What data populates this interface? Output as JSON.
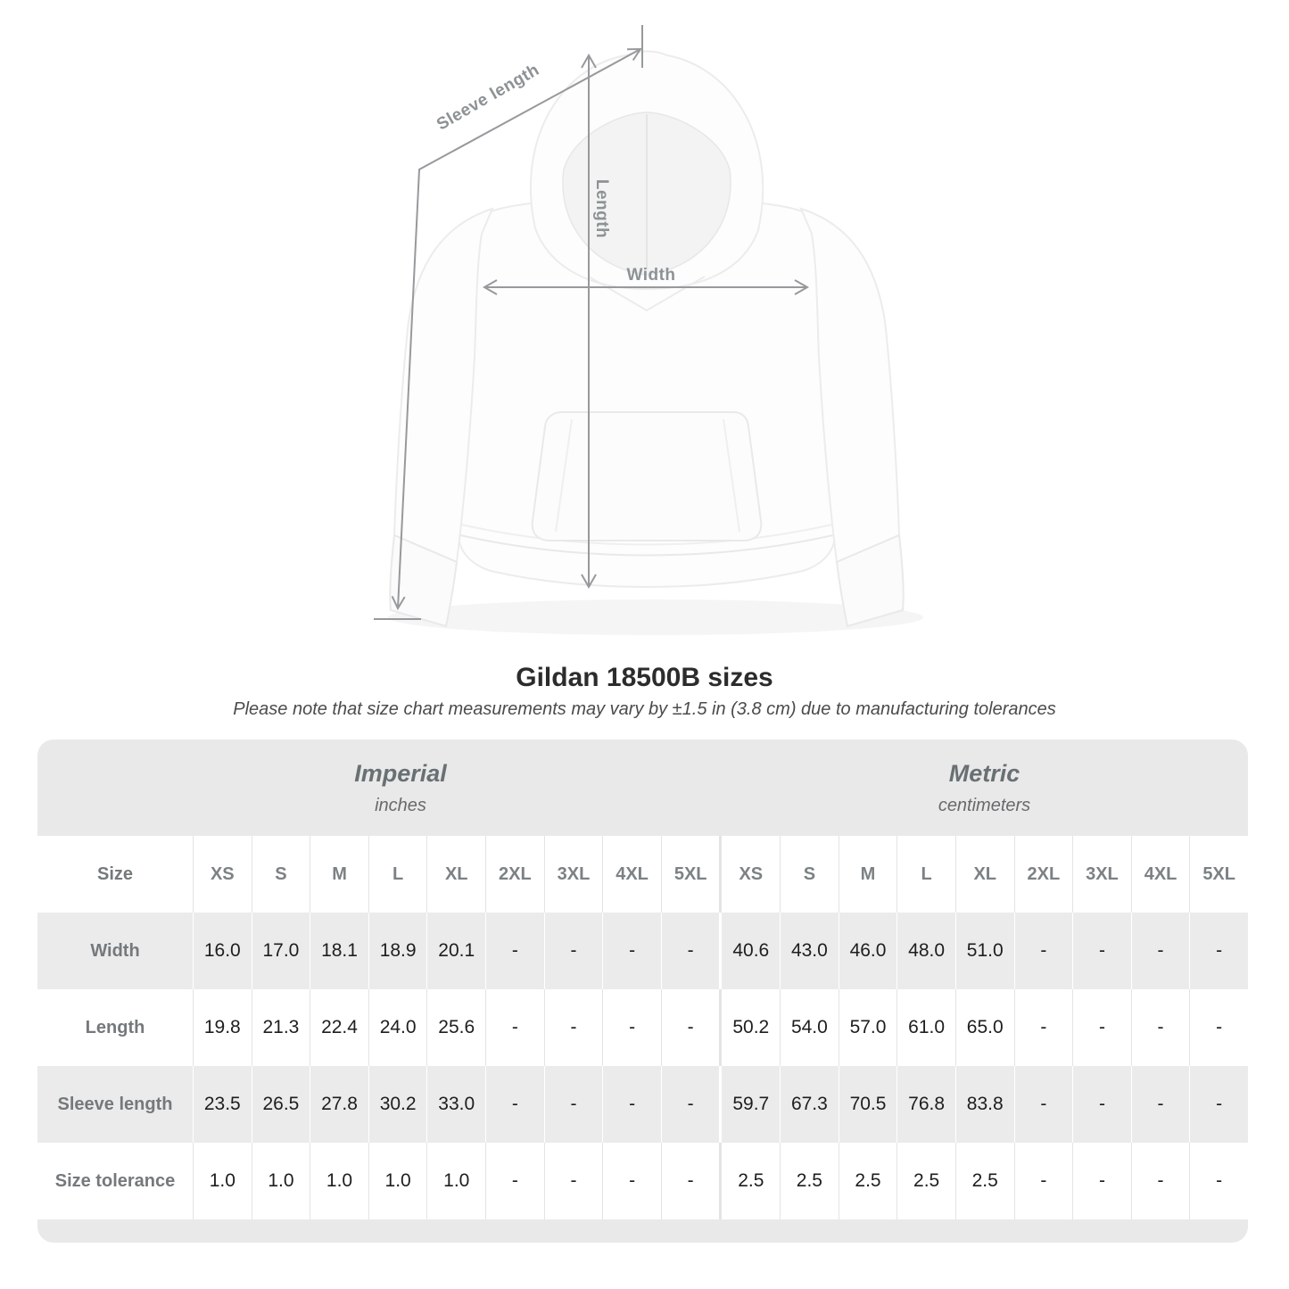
{
  "diagram": {
    "sleeve_label": "Sleeve length",
    "length_label": "Length",
    "width_label": "Width"
  },
  "header": {
    "title": "Gildan 18500B sizes",
    "subtitle": "Please note that size chart measurements may vary by ±1.5 in (3.8 cm) due to manufacturing tolerances"
  },
  "chart_data": {
    "type": "table",
    "title": "Gildan 18500B sizes",
    "unit_groups": [
      {
        "name": "Imperial",
        "unit": "inches"
      },
      {
        "name": "Metric",
        "unit": "centimeters"
      }
    ],
    "size_column_header": "Size",
    "sizes": [
      "XS",
      "S",
      "M",
      "L",
      "XL",
      "2XL",
      "3XL",
      "4XL",
      "5XL"
    ],
    "rows": [
      {
        "label": "Width",
        "imperial": [
          "16.0",
          "17.0",
          "18.1",
          "18.9",
          "20.1",
          "-",
          "-",
          "-",
          "-"
        ],
        "metric": [
          "40.6",
          "43.0",
          "46.0",
          "48.0",
          "51.0",
          "-",
          "-",
          "-",
          "-"
        ]
      },
      {
        "label": "Length",
        "imperial": [
          "19.8",
          "21.3",
          "22.4",
          "24.0",
          "25.6",
          "-",
          "-",
          "-",
          "-"
        ],
        "metric": [
          "50.2",
          "54.0",
          "57.0",
          "61.0",
          "65.0",
          "-",
          "-",
          "-",
          "-"
        ]
      },
      {
        "label": "Sleeve length",
        "imperial": [
          "23.5",
          "26.5",
          "27.8",
          "30.2",
          "33.0",
          "-",
          "-",
          "-",
          "-"
        ],
        "metric": [
          "59.7",
          "67.3",
          "70.5",
          "76.8",
          "83.8",
          "-",
          "-",
          "-",
          "-"
        ]
      },
      {
        "label": "Size tolerance",
        "imperial": [
          "1.0",
          "1.0",
          "1.0",
          "1.0",
          "1.0",
          "-",
          "-",
          "-",
          "-"
        ],
        "metric": [
          "2.5",
          "2.5",
          "2.5",
          "2.5",
          "2.5",
          "-",
          "-",
          "-",
          "-"
        ]
      }
    ]
  },
  "colors": {
    "band_gray": "#e9e9e9",
    "row_gray": "#ebebeb",
    "header_text": "#7c8184",
    "value_text": "#1e1e1e",
    "dimension_gray": "#97999c"
  }
}
